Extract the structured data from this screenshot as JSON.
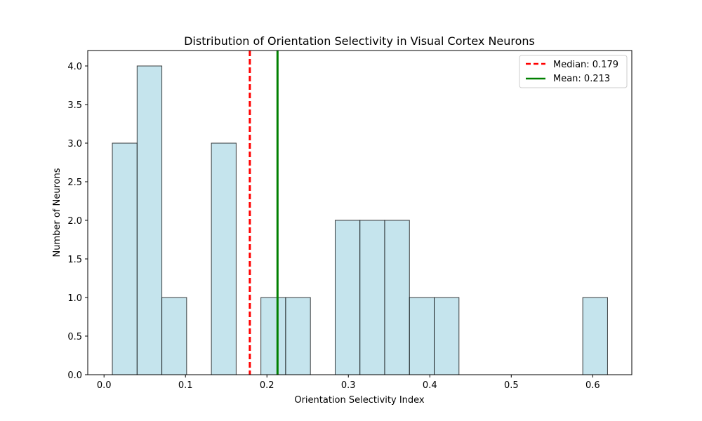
{
  "chart_data": {
    "type": "bar",
    "title": "Distribution of Orientation Selectivity in Visual Cortex Neurons",
    "xlabel": "Orientation Selectivity Index",
    "ylabel": "Number of Neurons",
    "xlim": [
      -0.02,
      0.648
    ],
    "ylim": [
      0,
      4.2
    ],
    "xticks": [
      0.0,
      0.1,
      0.2,
      0.3,
      0.4,
      0.5,
      0.6
    ],
    "xtick_labels": [
      "0.0",
      "0.1",
      "0.2",
      "0.3",
      "0.4",
      "0.5",
      "0.6"
    ],
    "yticks": [
      0,
      0.5,
      1.0,
      1.5,
      2.0,
      2.5,
      3.0,
      3.5,
      4.0
    ],
    "ytick_labels": [
      "0.0",
      "0.5",
      "1.0",
      "1.5",
      "2.0",
      "2.5",
      "3.0",
      "3.5",
      "4.0"
    ],
    "bin_edges": [
      0.0102,
      0.0406,
      0.071,
      0.1014,
      0.1318,
      0.1622,
      0.1926,
      0.223,
      0.2534,
      0.2838,
      0.3142,
      0.3446,
      0.375,
      0.4054,
      0.4358,
      0.4662,
      0.4966,
      0.527,
      0.5574,
      0.5878,
      0.6182
    ],
    "counts": [
      3,
      4,
      1,
      0,
      3,
      0,
      1,
      1,
      0,
      2,
      2,
      2,
      1,
      1,
      0,
      0,
      0,
      0,
      0,
      1
    ],
    "bar_color": "#add8e6",
    "bar_edge_color": "#000000",
    "grid": false,
    "legend_position": "top-right",
    "reference_lines": [
      {
        "label": "Median: 0.179",
        "value": 0.179,
        "color": "#ff0000",
        "style": "dashed"
      },
      {
        "label": "Mean: 0.213",
        "value": 0.213,
        "color": "#008000",
        "style": "solid"
      }
    ]
  }
}
